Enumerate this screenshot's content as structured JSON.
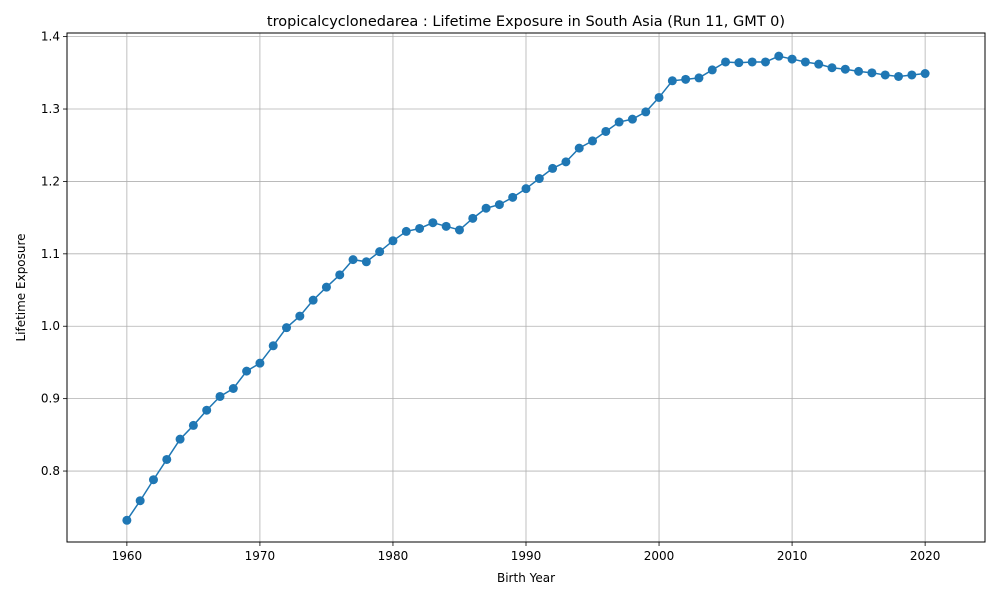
{
  "chart_data": {
    "type": "line",
    "title": "tropicalcyclonedarea : Lifetime Exposure in South Asia (Run 11, GMT 0)",
    "xlabel": "Birth Year",
    "ylabel": "Lifetime Exposure",
    "xlim": [
      1955.5,
      2024.5
    ],
    "ylim": [
      0.702,
      1.405
    ],
    "xticks": [
      1960,
      1970,
      1980,
      1990,
      2000,
      2010,
      2020
    ],
    "yticks": [
      0.8,
      0.9,
      1.0,
      1.1,
      1.2,
      1.3,
      1.4
    ],
    "ytick_labels": [
      "0.8",
      "0.9",
      "1.0",
      "1.1",
      "1.2",
      "1.3",
      "1.4"
    ],
    "grid": true,
    "color": "#1f77b4",
    "series": [
      {
        "x": [
          1960,
          1961,
          1962,
          1963,
          1964,
          1965,
          1966,
          1967,
          1968,
          1969,
          1970,
          1971,
          1972,
          1973,
          1974,
          1975,
          1976,
          1977,
          1978,
          1979,
          1980,
          1981,
          1982,
          1983,
          1984,
          1985,
          1986,
          1987,
          1988,
          1989,
          1990,
          1991,
          1992,
          1993,
          1994,
          1995,
          1996,
          1997,
          1998,
          1999,
          2000,
          2001,
          2002,
          2003,
          2004,
          2005,
          2006,
          2007,
          2008,
          2009,
          2010,
          2011,
          2012,
          2013,
          2014,
          2015,
          2016,
          2017,
          2018,
          2019,
          2020
        ],
        "values": [
          0.732,
          0.759,
          0.788,
          0.816,
          0.844,
          0.863,
          0.884,
          0.903,
          0.914,
          0.938,
          0.949,
          0.973,
          0.998,
          1.014,
          1.036,
          1.054,
          1.071,
          1.092,
          1.089,
          1.103,
          1.118,
          1.131,
          1.135,
          1.143,
          1.138,
          1.133,
          1.149,
          1.163,
          1.168,
          1.178,
          1.19,
          1.204,
          1.218,
          1.227,
          1.246,
          1.256,
          1.269,
          1.282,
          1.286,
          1.296,
          1.316,
          1.339,
          1.341,
          1.343,
          1.354,
          1.365,
          1.364,
          1.365,
          1.365,
          1.373,
          1.369,
          1.365,
          1.362,
          1.357,
          1.355,
          1.352,
          1.35,
          1.347,
          1.345,
          1.347,
          1.349
        ]
      }
    ]
  }
}
